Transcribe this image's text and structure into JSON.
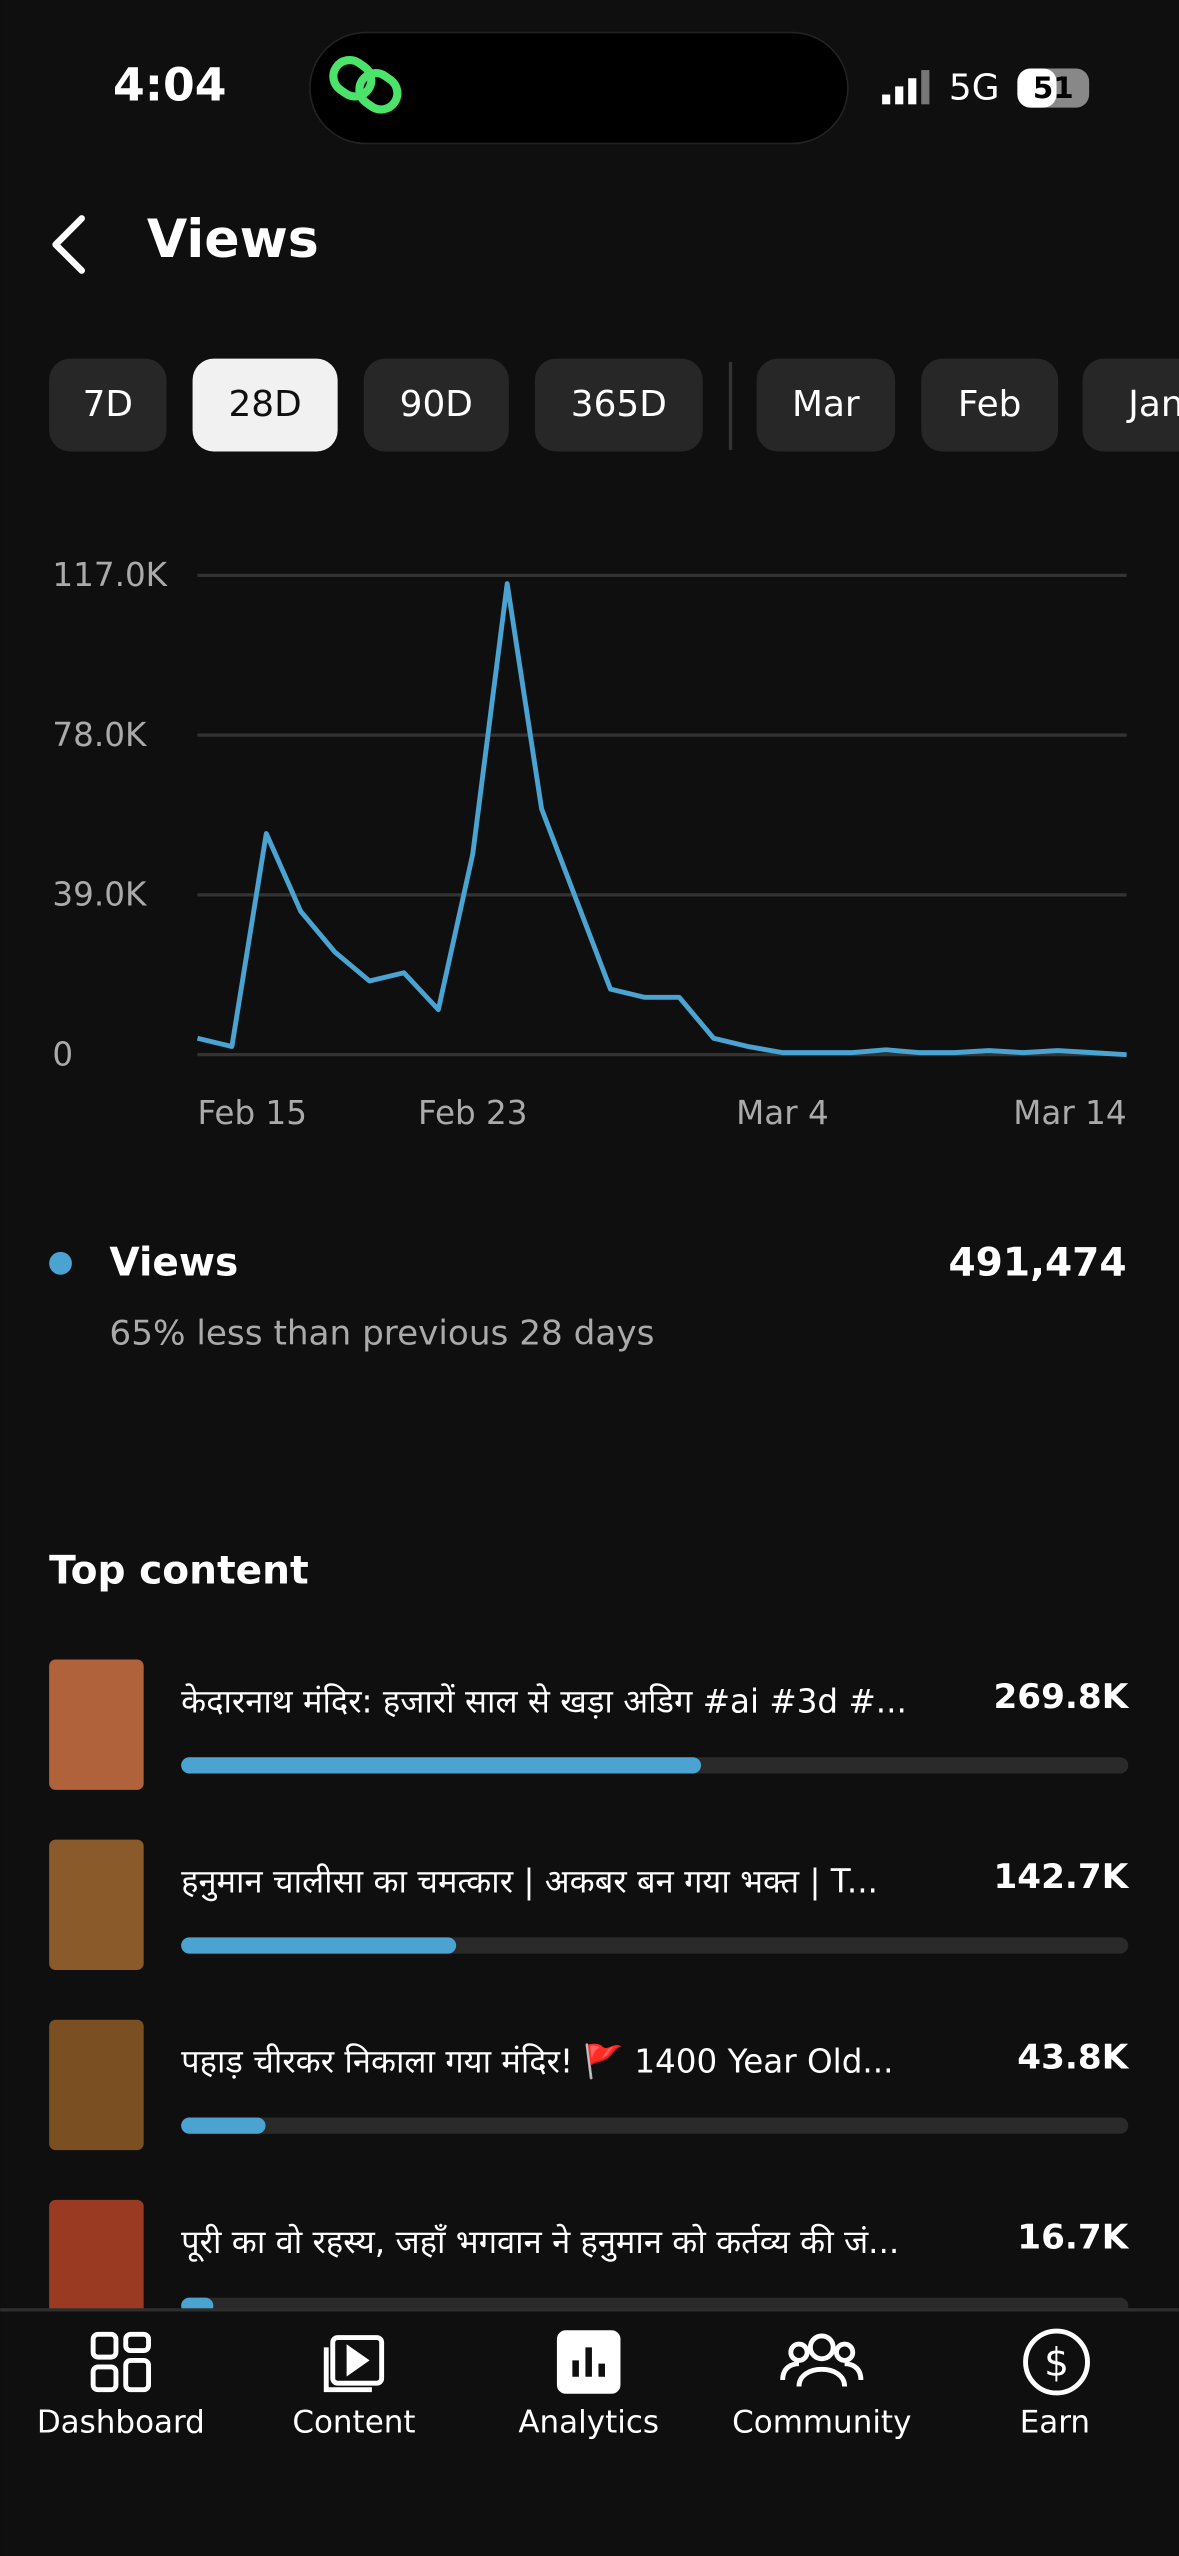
{
  "status": {
    "time": "4:04",
    "network": "5G",
    "battery": "51"
  },
  "header": {
    "title": "Views"
  },
  "filters": [
    "7D",
    "28D",
    "90D",
    "365D",
    "Mar",
    "Feb",
    "Jan"
  ],
  "chart_data": [
    {
      "type": "line",
      "color": "#4aa3d0",
      "categories": [
        "Feb 15",
        null,
        null,
        null,
        null,
        null,
        null,
        null,
        "Feb 23",
        null,
        null,
        null,
        null,
        null,
        null,
        null,
        null,
        "Mar 4",
        null,
        null,
        null,
        null,
        null,
        null,
        null,
        null,
        null,
        "Mar 14"
      ],
      "values": [
        4000,
        2000,
        54000,
        35000,
        25000,
        18000,
        20000,
        11000,
        49000,
        115000,
        60000,
        38000,
        16000,
        14000,
        14000,
        4000,
        2000,
        500,
        500,
        500,
        1200,
        500,
        500,
        1000,
        500,
        1000,
        500,
        0
      ],
      "ylim": [
        0,
        117000
      ],
      "yticks": [
        0,
        {
          "value": 39000,
          "label": "39.0K"
        },
        {
          "value": 78000,
          "label": "78.0K"
        },
        {
          "value": 117000,
          "label": "117.0K"
        }
      ],
      "grid": true
    },
    {
      "type": "hbar",
      "title": "Top content",
      "color": "#4aa3d0",
      "categories": [
        "केदारनाथ मंदिर: हजारों साल से खड़ा अडिग #ai #3d #...",
        "हनुमान चालीसा का चमत्कार | अकबर बन गया भक्त | T...",
        "पहाड़ चीरकर निकाला गया मंदिर! 🚩 1400 Year Old...",
        "पूरी का वो रहस्य, जहाँ भगवान ने हनुमान को कर्तव्य की जं..."
      ],
      "values": [
        269800,
        142700,
        43800,
        16700
      ],
      "value_labels": [
        "269.8K",
        "142.7K",
        "43.8K",
        "16.7K"
      ],
      "xlim": [
        0,
        491474
      ]
    }
  ],
  "summary": {
    "label": "Views",
    "value": "491,474",
    "note": "65% less than previous 28 days"
  },
  "nav": [
    "Dashboard",
    "Content",
    "Analytics",
    "Community",
    "Earn"
  ]
}
